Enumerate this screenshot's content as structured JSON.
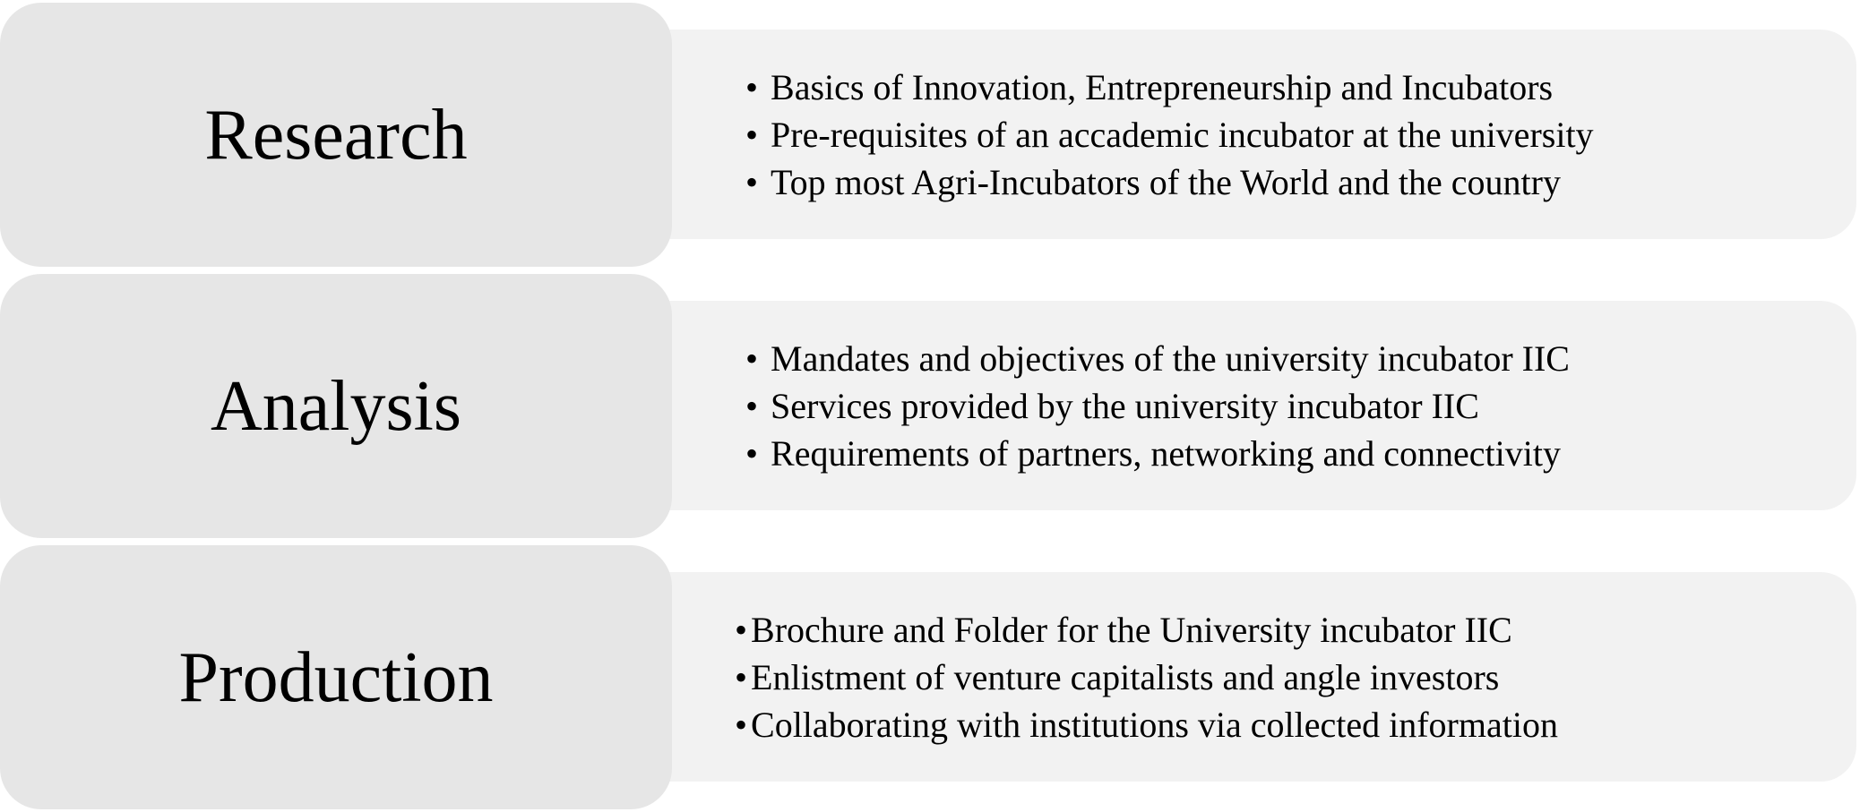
{
  "colors": {
    "stage_fill": "#e6e6e6",
    "detail_fill": "#f2f2f2",
    "text": "#000000"
  },
  "stages": [
    {
      "label": "Research",
      "bullet": "•",
      "items": [
        "Basics of Innovation, Entrepreneurship and Incubators",
        "Pre-requisites of an accademic incubator at the university",
        "Top most Agri-Incubators of the World and the country"
      ]
    },
    {
      "label": "Analysis",
      "bullet": "•",
      "items": [
        "Mandates and objectives of the university incubator IIC",
        "Services provided by the university incubator IIC",
        "Requirements of partners, networking and connectivity"
      ]
    },
    {
      "label": "Production",
      "bullet": "•",
      "items": [
        "Brochure and Folder for the University incubator IIC",
        "Enlistment of venture capitalists and angle investors",
        "Collaborating with institutions via collected information"
      ]
    }
  ]
}
